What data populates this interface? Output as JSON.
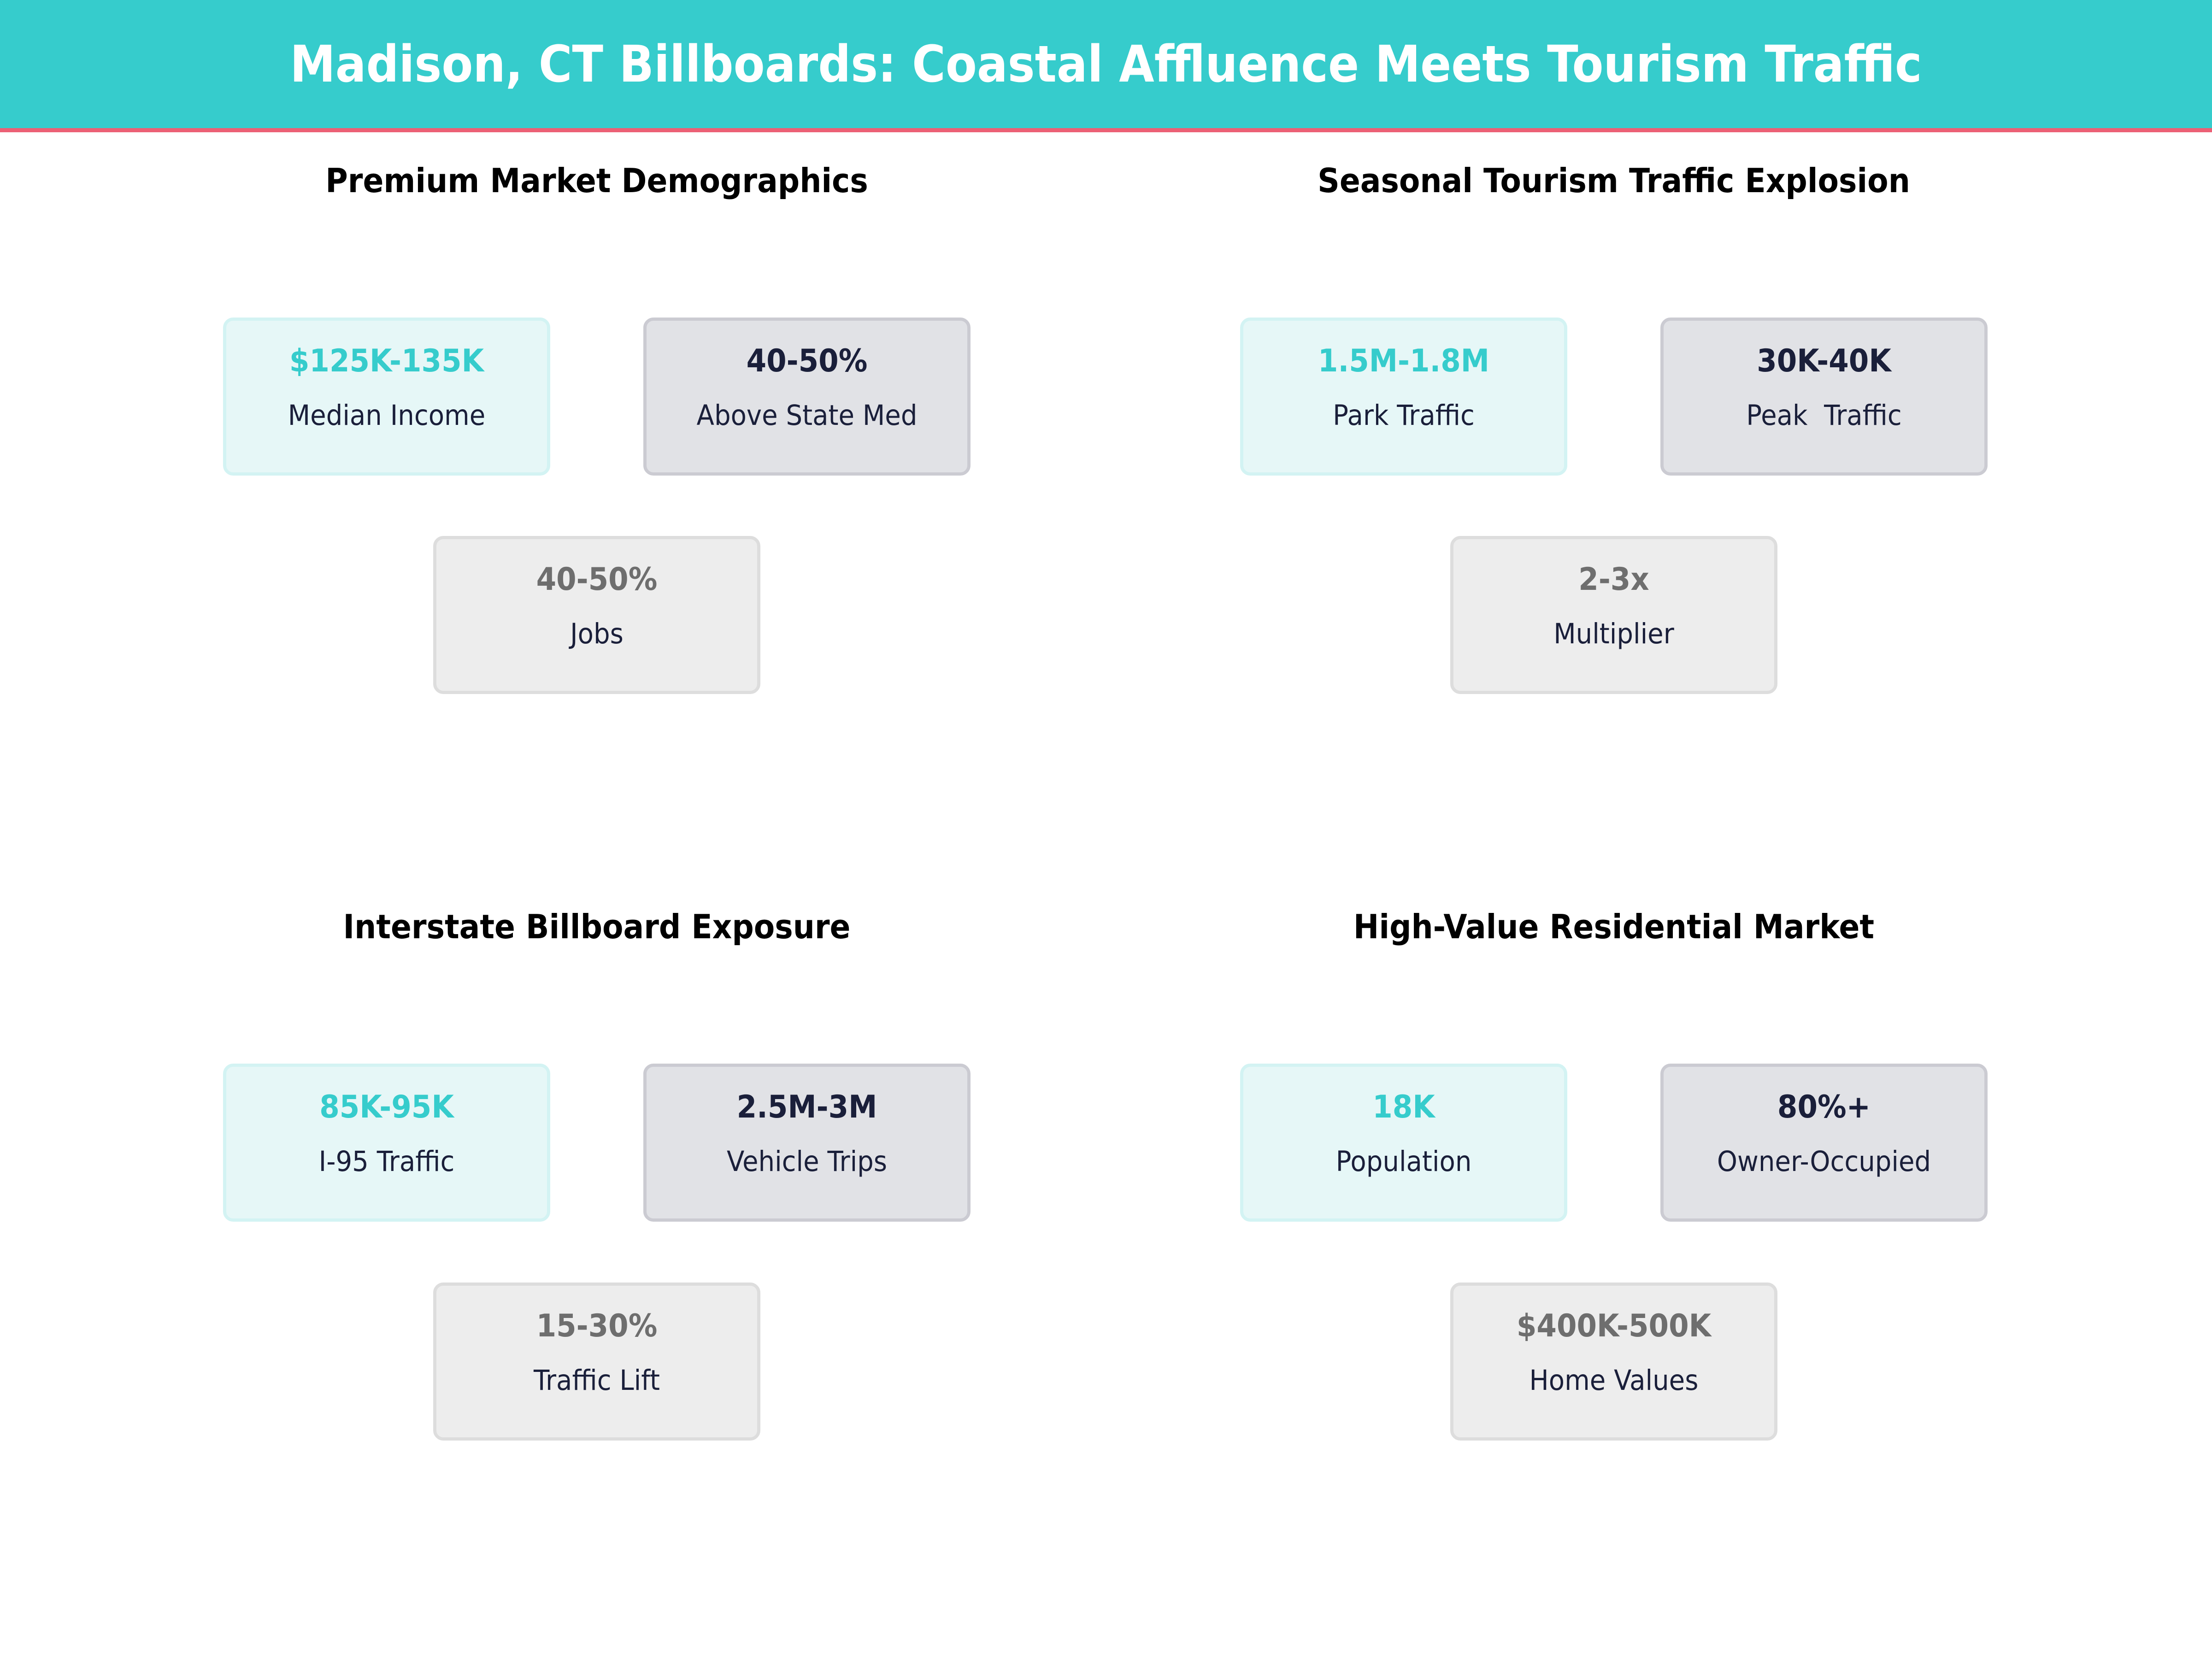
{
  "header": {
    "title": "Madison, CT Billboards: Coastal Affluence Meets Tourism Traffic"
  },
  "colors": {
    "accent": "#36CCCC",
    "header_line": "#EC6075",
    "dark": "#1A1F3A",
    "muted": "#6E6E6E"
  },
  "panels": [
    {
      "title": "Premium Market Demographics",
      "cards": [
        {
          "value": "$125K-135K",
          "label": "Median Income"
        },
        {
          "value": "40-50%",
          "label": "Above State Med"
        },
        {
          "value": "40-50%",
          "label": "Jobs"
        }
      ]
    },
    {
      "title": "Seasonal Tourism Traffic Explosion",
      "cards": [
        {
          "value": "1.5M-1.8M",
          "label": "Park Traffic"
        },
        {
          "value": "30K-40K",
          "label": "Peak  Traffic"
        },
        {
          "value": "2-3x",
          "label": "Multiplier"
        }
      ]
    },
    {
      "title": "Interstate Billboard Exposure",
      "cards": [
        {
          "value": "85K-95K",
          "label": "I-95 Traffic"
        },
        {
          "value": "2.5M-3M",
          "label": "Vehicle Trips"
        },
        {
          "value": "15-30%",
          "label": "Traffic Lift"
        }
      ]
    },
    {
      "title": "High-Value Residential Market",
      "cards": [
        {
          "value": "18K",
          "label": "Population"
        },
        {
          "value": "80%+",
          "label": "Owner-Occupied"
        },
        {
          "value": "$400K-500K",
          "label": "Home Values"
        }
      ]
    }
  ]
}
